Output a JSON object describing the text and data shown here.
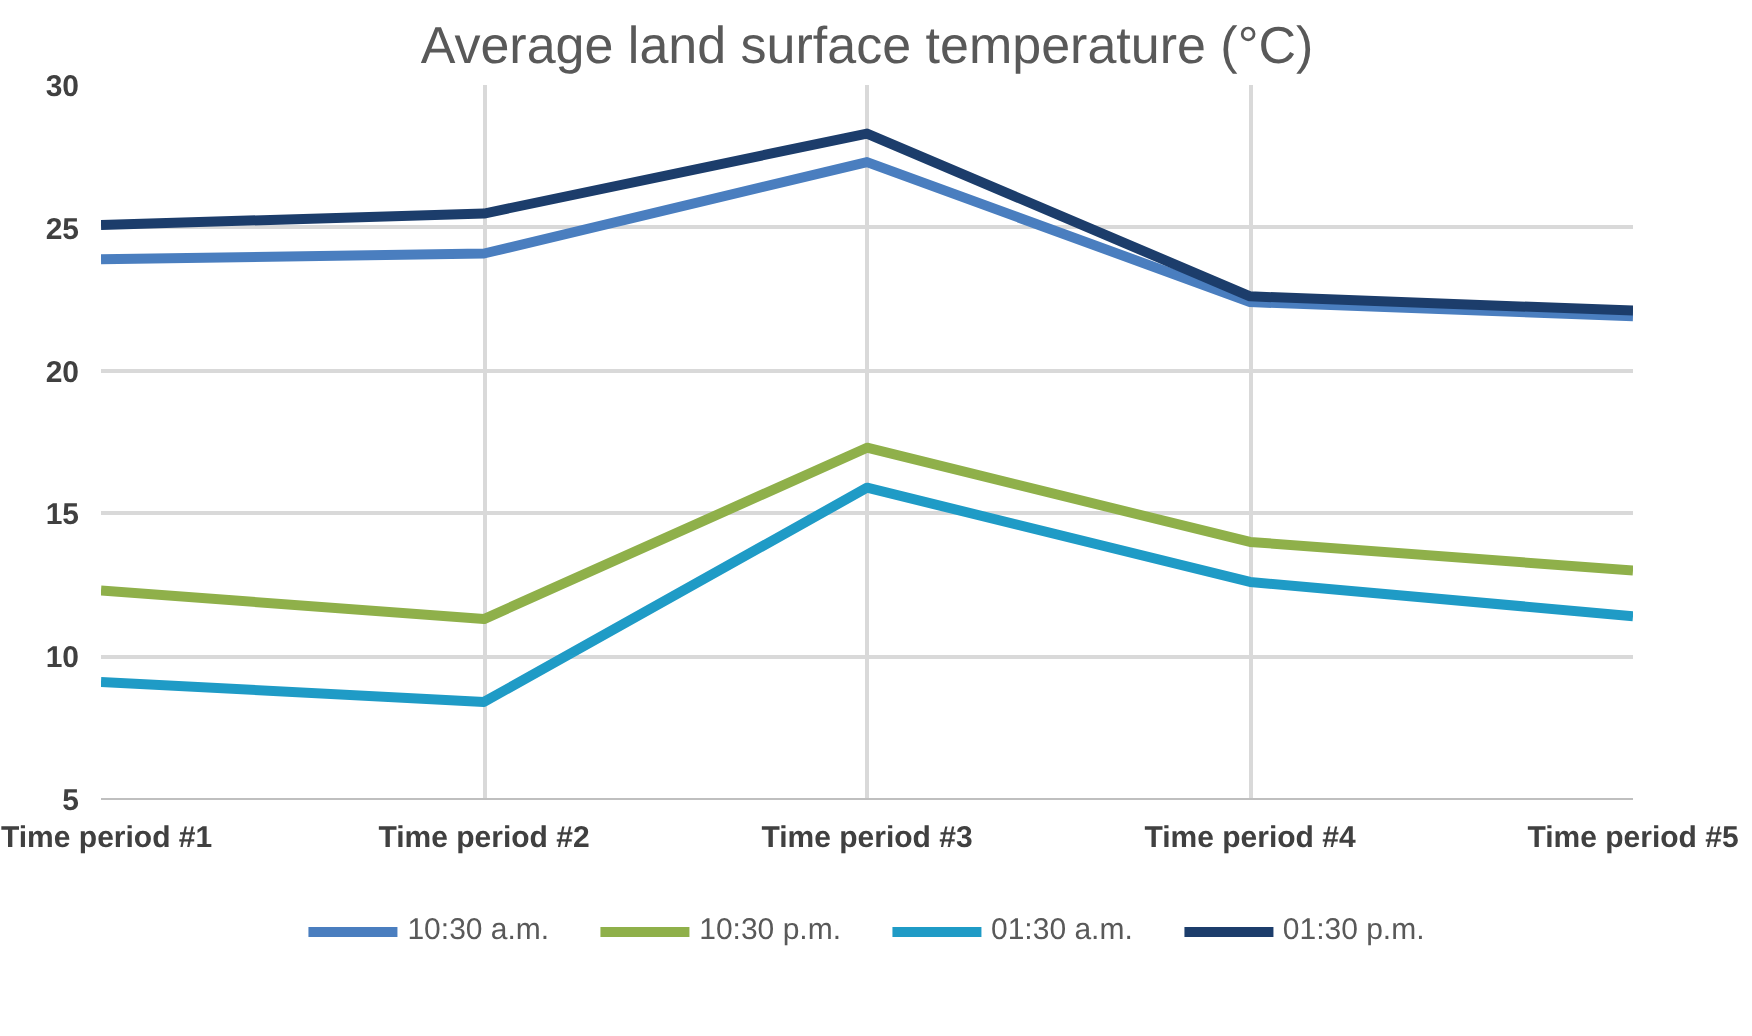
{
  "chart_data": {
    "type": "line",
    "title": "Average land surface temperature (°C)",
    "categories": [
      "Time period #1",
      "Time period #2",
      "Time period #3",
      "Time period #4",
      "Time period #5"
    ],
    "series": [
      {
        "name": "10:30 a.m.",
        "color": "#4a7ebf",
        "values": [
          23.9,
          24.1,
          27.3,
          22.4,
          21.9
        ]
      },
      {
        "name": "10:30 p.m.",
        "color": "#8fb04a",
        "values": [
          12.3,
          11.3,
          17.3,
          14.0,
          13.0
        ]
      },
      {
        "name": "01:30 a.m.",
        "color": "#1f9bc6",
        "values": [
          9.1,
          8.4,
          15.9,
          12.6,
          11.4
        ]
      },
      {
        "name": "01:30 p.m.",
        "color": "#1c3d6b",
        "values": [
          25.1,
          25.5,
          28.3,
          22.6,
          22.1
        ]
      }
    ],
    "ylim": [
      5,
      30
    ],
    "yticks": [
      5,
      10,
      15,
      20,
      25,
      30
    ],
    "grid": true,
    "legend": "bottom",
    "marker": "none",
    "line_style": "solid"
  }
}
